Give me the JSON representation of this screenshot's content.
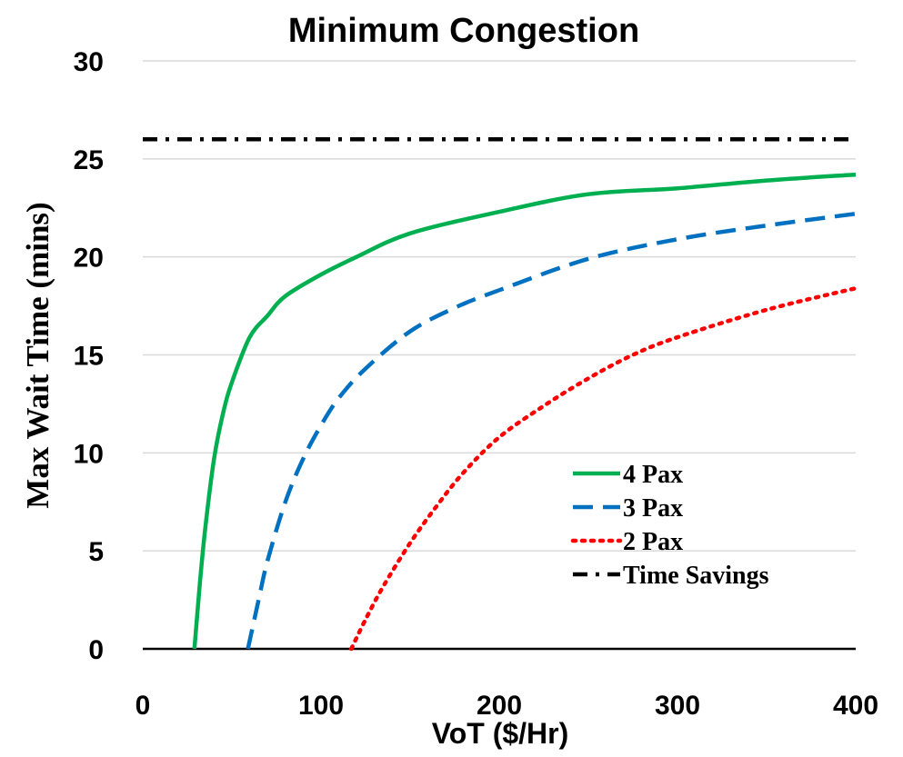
{
  "chart_data": {
    "type": "line",
    "title": "Minimum Congestion",
    "xlabel": "VoT ($/Hr)",
    "ylabel": "Max Wait Time (mins)",
    "xlim": [
      0,
      400
    ],
    "ylim": [
      0,
      30
    ],
    "x_ticks": [
      "0",
      "100",
      "200",
      "300",
      "400"
    ],
    "y_ticks": [
      "0",
      "5",
      "10",
      "15",
      "20",
      "25",
      "30"
    ],
    "grid": "horizontal",
    "legend_position": "bottom-right",
    "series": [
      {
        "name": "4 Pax",
        "color": "#00b050",
        "style": "solid",
        "x": [
          29,
          32,
          35,
          40,
          45,
          50,
          60,
          70,
          80,
          100,
          120,
          150,
          200,
          250,
          300,
          350,
          400
        ],
        "y": [
          0,
          3.3,
          6.1,
          9.7,
          12.0,
          13.6,
          15.9,
          17.0,
          18.0,
          19.1,
          20.0,
          21.2,
          22.3,
          23.2,
          23.5,
          23.9,
          24.2
        ]
      },
      {
        "name": "3 Pax",
        "color": "#0070c0",
        "style": "dashed",
        "x": [
          59,
          65,
          70,
          80,
          90,
          100,
          110,
          125,
          150,
          175,
          200,
          250,
          300,
          350,
          400
        ],
        "y": [
          0,
          2.5,
          4.5,
          7.5,
          9.7,
          11.4,
          12.8,
          14.3,
          16.2,
          17.4,
          18.3,
          19.9,
          20.9,
          21.6,
          22.2
        ]
      },
      {
        "name": "2 Pax",
        "color": "#ff0000",
        "style": "dotted",
        "x": [
          117,
          125,
          135,
          150,
          165,
          180,
          200,
          225,
          250,
          275,
          300,
          350,
          400
        ],
        "y": [
          0,
          1.5,
          3.2,
          5.4,
          7.3,
          9.0,
          10.8,
          12.4,
          13.8,
          15.0,
          15.9,
          17.3,
          18.4
        ]
      },
      {
        "name": "Time Savings",
        "color": "#000000",
        "style": "dashdot",
        "x": [
          0,
          400
        ],
        "y": [
          26,
          26
        ]
      }
    ]
  }
}
